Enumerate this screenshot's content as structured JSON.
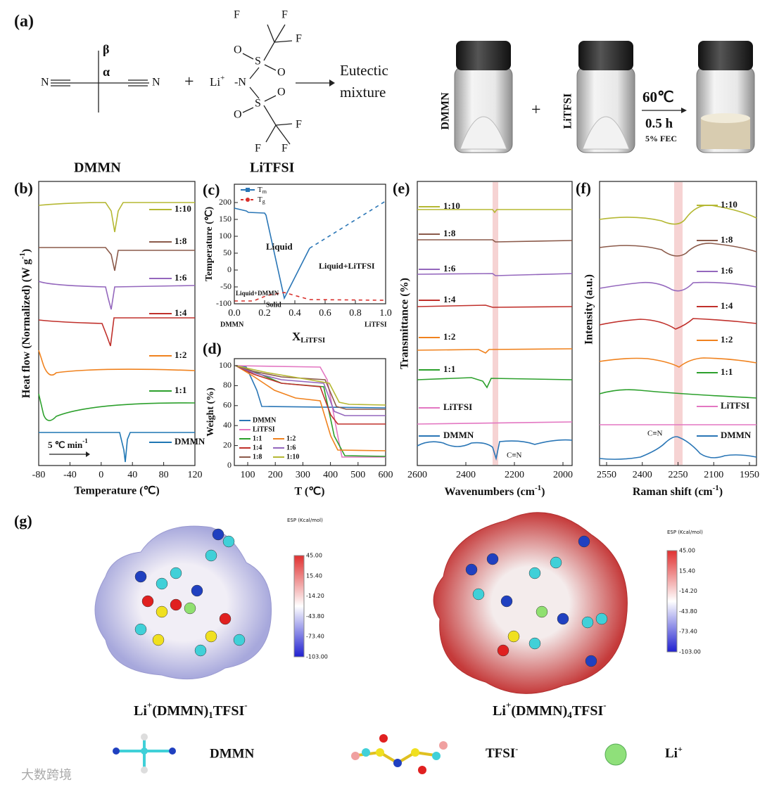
{
  "a": {
    "label": "(a)",
    "beta": "β",
    "alpha": "α",
    "n_left": "N",
    "n_right": "N",
    "plus": "+",
    "li": "Li",
    "li_charge": "+",
    "tfsi_n": "-N",
    "tfsi_atoms": [
      "O",
      "S",
      "O",
      "O",
      "S",
      "O",
      "F",
      "F",
      "F",
      "F",
      "F",
      "F"
    ],
    "dmmn": "DMMN",
    "litfsi": "LiTFSI",
    "product": [
      "Eutectic",
      "mixture"
    ],
    "vial_dmmn": "DMMN",
    "vial_litfsi": "LiTFSI",
    "plus2": "+",
    "conditions": [
      "60℃",
      "0.5 h",
      "5% FEC"
    ]
  },
  "b": {
    "label": "(b)",
    "xticks": [
      "-80",
      "-40",
      "0",
      "40",
      "80",
      "120"
    ],
    "xlabel": "Temperature (℃)",
    "ylabel": "Heat flow (Normalized) (W g",
    "ylabel_sup": "-1",
    "ylabel_end": ")",
    "rate": "5 ℃ min",
    "rate_sup": "-1",
    "legend": [
      "1:10",
      "1:8",
      "1:6",
      "1:4",
      "1:2",
      "1:1",
      "DMMN"
    ]
  },
  "c": {
    "label": "(c)",
    "xticks": [
      "0.0",
      "0.2",
      "0.4",
      "0.6",
      "0.8",
      "1.0"
    ],
    "yticks": [
      "200",
      "150",
      "100",
      "50",
      "0",
      "-50",
      "-100"
    ],
    "ylabel": "Temperature (℃)",
    "xlabel": "X",
    "xlabel_sub": "LiTFSI",
    "legend_t": "T",
    "legend_m": "m",
    "legend_g": "g",
    "regions": [
      "Liquid",
      "Liquid+LiTFSI",
      "Liquid+DMMN",
      "Solid"
    ],
    "ends": [
      "DMMN",
      "LiTFSI"
    ]
  },
  "d": {
    "label": "(d)",
    "xticks": [
      "100",
      "200",
      "300",
      "400",
      "500",
      "600"
    ],
    "yticks": [
      "100",
      "80",
      "60",
      "40",
      "20",
      "0"
    ],
    "ylabel": "Weight (%)",
    "xlabel": "T (℃)",
    "legend": [
      "DMMN",
      "LiTFSI",
      "1:1",
      "1:2",
      "1:4",
      "1:6",
      "1:8",
      "1:10"
    ]
  },
  "e": {
    "label": "(e)",
    "xticks": [
      "2600",
      "2400",
      "2200",
      "2000"
    ],
    "ylabel": "Transmittance (%)",
    "xlabel": "Wavenumbers (cm",
    "xlabel_sup": "-1",
    "xlabel_end": ")",
    "cn": "C≡N",
    "legend": [
      "1:10",
      "1:8",
      "1:6",
      "1:4",
      "1:2",
      "1:1",
      "LiTFSI",
      "DMMN"
    ]
  },
  "f": {
    "label": "(f)",
    "xticks": [
      "2550",
      "2400",
      "2250",
      "2100",
      "1950"
    ],
    "ylabel": "Intensity (a.u.)",
    "xlabel": "Raman shift (cm",
    "xlabel_sup": "-1",
    "xlabel_end": ")",
    "cn": "C≡N",
    "legend": [
      "1:10",
      "1:8",
      "1:6",
      "1:4",
      "1:2",
      "1:1",
      "LiTFSI",
      "DMMN"
    ]
  },
  "g": {
    "label": "(g)",
    "esp": "ESP (Kcal/mol)",
    "colorbar": [
      "45.00",
      "15.40",
      "-14.20",
      "-43.80",
      "-73.40",
      "-103.00"
    ],
    "caption1": [
      "Li",
      "+",
      "(DMMN)",
      "1",
      "TFSI",
      "-"
    ],
    "caption2": [
      "Li",
      "+",
      "(DMMN)",
      "4",
      "TFSI",
      "-"
    ],
    "key": [
      "DMMN",
      "TFSI",
      "-",
      "Li",
      "+"
    ]
  },
  "watermark": "大数跨境"
}
